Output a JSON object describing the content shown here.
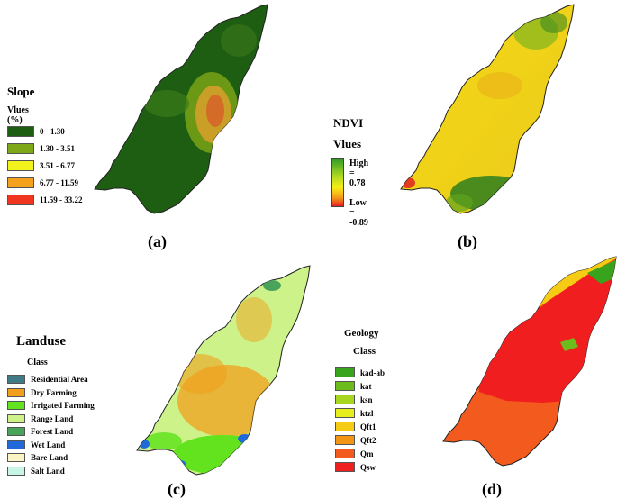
{
  "panels": {
    "a": {
      "caption": "(a)",
      "title": "Slope",
      "subtitle": "Vlues (%)",
      "legend": [
        {
          "label": "0 - 1.30",
          "color": "#1d5e12"
        },
        {
          "label": "1.30 - 3.51",
          "color": "#7fa818"
        },
        {
          "label": "3.51 - 6.77",
          "color": "#f2f21c"
        },
        {
          "label": "6.77 - 11.59",
          "color": "#f4a21e"
        },
        {
          "label": "11.59 - 33.22",
          "color": "#f0361e"
        }
      ]
    },
    "b": {
      "caption": "(b)",
      "title": "NDVI",
      "subtitle": "Vlues",
      "high": "High = 0.78",
      "low": "Low = -0.89"
    },
    "c": {
      "caption": "(c)",
      "title": "Landuse",
      "subtitle": "Class",
      "legend": [
        {
          "label": "Residential Area",
          "color": "#3f7a86"
        },
        {
          "label": "Dry Farming",
          "color": "#f0a01c"
        },
        {
          "label": "Irrigated Farming",
          "color": "#62e31e"
        },
        {
          "label": "Range Land",
          "color": "#cdf28a"
        },
        {
          "label": "Forest Land",
          "color": "#4aa35a"
        },
        {
          "label": "Wet Land",
          "color": "#1f6ad8"
        },
        {
          "label": "Bare Land",
          "color": "#fbf5c6"
        },
        {
          "label": "Salt Land",
          "color": "#c8f5e6"
        }
      ]
    },
    "d": {
      "caption": "(d)",
      "title": "Geology",
      "subtitle": "Class",
      "legend": [
        {
          "label": "kad-ab",
          "color": "#38a31c"
        },
        {
          "label": "kat",
          "color": "#6cbd1c"
        },
        {
          "label": "ksn",
          "color": "#a8d61e"
        },
        {
          "label": "ktzl",
          "color": "#e6ee1c"
        },
        {
          "label": "Qft1",
          "color": "#f5cb14"
        },
        {
          "label": "Qft2",
          "color": "#f49414"
        },
        {
          "label": "Qm",
          "color": "#f25a1e"
        },
        {
          "label": "Qsw",
          "color": "#f01e1e"
        }
      ]
    }
  }
}
